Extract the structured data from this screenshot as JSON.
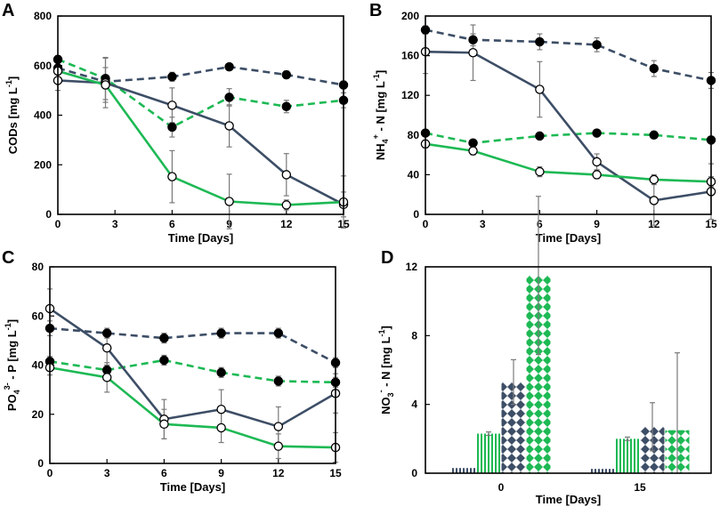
{
  "figure": {
    "colors": {
      "dark": "#3d4e66",
      "green": "#1db954",
      "error": "#7a7a7a",
      "axis": "#000000"
    }
  },
  "chart_data": [
    {
      "panel": "A",
      "type": "line",
      "xlabel": "Time [Days]",
      "ylabel": "CODs [mg L -1]",
      "ylabel_parts": {
        "main": "CODs [mg L",
        "sup": "-1",
        "end": "]"
      },
      "xlim": [
        0,
        15
      ],
      "ylim": [
        0,
        800
      ],
      "xticks": [
        0,
        3,
        6,
        9,
        12,
        15
      ],
      "yticks": [
        0,
        200,
        400,
        600,
        800
      ],
      "x": [
        0,
        2.5,
        6,
        9,
        12,
        15
      ],
      "series": [
        {
          "name": "dark dashed filled",
          "color": "dark",
          "dash": true,
          "marker": "filled",
          "values": [
            590,
            535,
            555,
            595,
            563,
            522
          ],
          "errors": [
            10,
            12,
            18,
            12,
            15,
            15
          ]
        },
        {
          "name": "green dashed filled",
          "color": "green",
          "dash": true,
          "marker": "filled",
          "values": [
            625,
            548,
            352,
            472,
            435,
            460
          ],
          "errors": [
            15,
            85,
            40,
            35,
            25,
            30
          ]
        },
        {
          "name": "dark solid open",
          "color": "dark",
          "dash": false,
          "marker": "open",
          "values": [
            540,
            530,
            440,
            357,
            160,
            40
          ],
          "errors": [
            40,
            100,
            70,
            85,
            85,
            50
          ]
        },
        {
          "name": "green solid open",
          "color": "green",
          "dash": false,
          "marker": "open",
          "values": [
            578,
            522,
            152,
            52,
            38,
            50
          ],
          "errors": [
            10,
            70,
            105,
            110,
            20,
            105
          ]
        }
      ]
    },
    {
      "panel": "B",
      "type": "line",
      "xlabel": "Time [Days]",
      "ylabel": "NH4 + - N [mg L -1]",
      "ylabel_parts": {
        "main": "NH",
        "sub": "4",
        "sup1": "+",
        "mid": " - N [mg L",
        "sup": "-1",
        "end": "]"
      },
      "xlim": [
        0,
        15
      ],
      "ylim": [
        0,
        200
      ],
      "xticks": [
        0,
        3,
        6,
        9,
        12,
        15
      ],
      "yticks": [
        0,
        40,
        80,
        120,
        160,
        200
      ],
      "x": [
        0,
        2.5,
        6,
        9,
        12,
        15
      ],
      "series": [
        {
          "name": "dark dashed filled",
          "color": "dark",
          "dash": true,
          "marker": "filled",
          "values": [
            186,
            176,
            174,
            171,
            147,
            135
          ],
          "errors": [
            4,
            6,
            8,
            7,
            8,
            8
          ]
        },
        {
          "name": "green dashed filled",
          "color": "green",
          "dash": true,
          "marker": "filled",
          "values": [
            82,
            72,
            79,
            82,
            80,
            75
          ],
          "errors": [
            3,
            3,
            3,
            3,
            3,
            3
          ]
        },
        {
          "name": "dark solid open",
          "color": "dark",
          "dash": false,
          "marker": "open",
          "values": [
            164,
            163,
            126,
            53,
            14,
            23
          ],
          "errors": [
            22,
            28,
            28,
            8,
            25,
            28
          ]
        },
        {
          "name": "green solid open",
          "color": "green",
          "dash": false,
          "marker": "open",
          "values": [
            71,
            64,
            43,
            40,
            35,
            33
          ],
          "errors": [
            4,
            4,
            5,
            4,
            5,
            5
          ]
        }
      ]
    },
    {
      "panel": "C",
      "type": "line",
      "xlabel": "Time [Days]",
      "ylabel": "PO4 3- - P [mg L -1]",
      "ylabel_parts": {
        "main": "PO",
        "sub": "4",
        "sup1": "3-",
        "mid": " - P [mg L",
        "sup": "-1",
        "end": "]"
      },
      "xlim": [
        0,
        15
      ],
      "ylim": [
        0,
        80
      ],
      "xticks": [
        0,
        3,
        6,
        9,
        12,
        15
      ],
      "yticks": [
        0,
        20,
        40,
        60,
        80
      ],
      "x": [
        0,
        3,
        6,
        9,
        12,
        15
      ],
      "series": [
        {
          "name": "dark dashed filled",
          "color": "dark",
          "dash": true,
          "marker": "filled",
          "values": [
            55,
            53,
            51,
            53,
            53,
            41
          ],
          "errors": [
            3,
            2,
            2,
            2,
            2,
            2
          ]
        },
        {
          "name": "green dashed filled",
          "color": "green",
          "dash": true,
          "marker": "filled",
          "values": [
            41.5,
            38,
            42,
            37,
            33.5,
            33
          ],
          "errors": [
            2,
            2,
            2,
            2,
            2,
            2
          ]
        },
        {
          "name": "dark solid open",
          "color": "dark",
          "dash": false,
          "marker": "open",
          "values": [
            63,
            47,
            18,
            22,
            15,
            28.5
          ],
          "errors": [
            8,
            7,
            8,
            8,
            8,
            8
          ]
        },
        {
          "name": "green solid open",
          "color": "green",
          "dash": false,
          "marker": "open",
          "values": [
            39,
            35,
            16,
            14.5,
            7,
            6.5
          ],
          "errors": [
            3,
            6,
            6,
            6,
            5,
            6
          ]
        }
      ]
    },
    {
      "panel": "D",
      "type": "bar",
      "xlabel": "Time [Days]",
      "ylabel": "NO3 - - N [mg L -1]",
      "ylabel_parts": {
        "main": "NO",
        "sub": "3",
        "sup1": "-",
        "mid": " - N [mg L",
        "sup": "-1",
        "end": "]"
      },
      "ylim": [
        0,
        12
      ],
      "yticks": [
        0,
        4,
        8,
        12
      ],
      "categories": [
        "0",
        "15"
      ],
      "series": [
        {
          "name": "dark vertical stripes",
          "color": "dark",
          "pattern": "vstripe",
          "values": [
            0.3,
            0.25
          ],
          "errors": [
            0,
            0
          ]
        },
        {
          "name": "green vertical stripes",
          "color": "green",
          "pattern": "vstripe",
          "values": [
            2.3,
            2.0
          ],
          "errors": [
            0.1,
            0.1
          ]
        },
        {
          "name": "dark diamonds",
          "color": "dark",
          "pattern": "diamond",
          "values": [
            5.3,
            2.7
          ],
          "errors": [
            1.3,
            1.4
          ]
        },
        {
          "name": "green diamonds",
          "color": "green",
          "pattern": "diamond",
          "values": [
            11.5,
            2.5
          ],
          "errors": [
            4.6,
            4.5
          ]
        }
      ]
    }
  ]
}
